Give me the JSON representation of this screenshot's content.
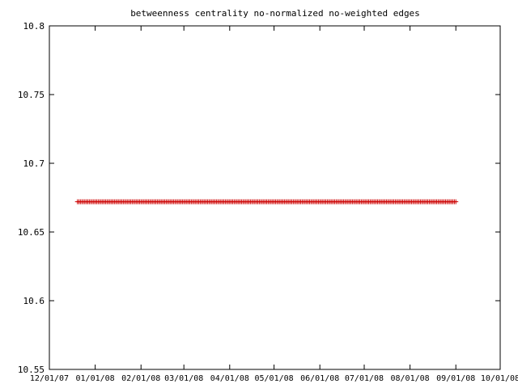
{
  "chart_data": {
    "type": "scatter",
    "title": "betweenness centrality no-normalized no-weighted edges",
    "xlabel": "",
    "ylabel": "",
    "x_range": [
      "12/01/07",
      "10/01/08"
    ],
    "ylim": [
      10.55,
      10.8
    ],
    "x_ticks": [
      "12/01/07",
      "01/01/08",
      "02/01/08",
      "03/01/08",
      "04/01/08",
      "05/01/08",
      "06/01/08",
      "07/01/08",
      "08/01/08",
      "09/01/08",
      "10/01/08"
    ],
    "y_ticks": [
      "10.55",
      "10.6",
      "10.65",
      "10.7",
      "10.75",
      "10.8"
    ],
    "grid": false,
    "legend": "none",
    "marker": "plus",
    "series": [
      {
        "color": "#cc0000",
        "x_start": "12/20/07",
        "x_end": "09/01/08",
        "step": "daily",
        "y_constant": 10.672
      }
    ]
  }
}
